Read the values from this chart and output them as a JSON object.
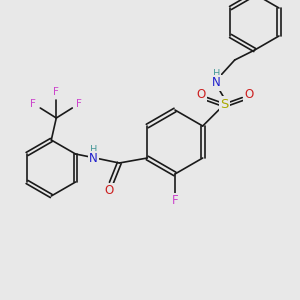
{
  "bg_color": "#e8e8e8",
  "bond_color": "#1a1a1a",
  "colors": {
    "C": "#1a1a1a",
    "H": "#4a9a9a",
    "N": "#2020cc",
    "O": "#cc2020",
    "F": "#cc44cc",
    "S": "#aaaa00"
  },
  "font_size": 7.5,
  "lw": 1.2
}
